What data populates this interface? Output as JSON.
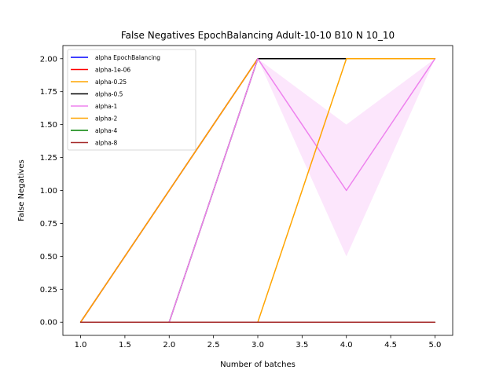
{
  "chart_data": {
    "type": "line",
    "title": "False Negatives EpochBalancing Adult-10-10 B10 N 10_10",
    "xlabel": "Number of batches",
    "ylabel": "False Negatives",
    "xlim": [
      0.8,
      5.2
    ],
    "ylim": [
      -0.1,
      2.1
    ],
    "xticks": [
      1.0,
      1.5,
      2.0,
      2.5,
      3.0,
      3.5,
      4.0,
      4.5,
      5.0
    ],
    "xtick_labels": [
      "1.0",
      "1.5",
      "2.0",
      "2.5",
      "3.0",
      "3.5",
      "4.0",
      "4.5",
      "5.0"
    ],
    "yticks": [
      0.0,
      0.25,
      0.5,
      0.75,
      1.0,
      1.25,
      1.5,
      1.75,
      2.0
    ],
    "ytick_labels": [
      "0.00",
      "0.25",
      "0.50",
      "0.75",
      "1.00",
      "1.25",
      "1.50",
      "1.75",
      "2.00"
    ],
    "grid": false,
    "legend_position": "top-left",
    "x": [
      1,
      2,
      3,
      4,
      5
    ],
    "series": [
      {
        "name": "alpha EpochBalancing",
        "color": "#0000ff",
        "values": [
          0,
          1,
          2,
          2,
          2
        ]
      },
      {
        "name": "alpha-1e-06",
        "color": "#ff0000",
        "values": [
          0,
          1,
          2,
          2,
          2
        ]
      },
      {
        "name": "alpha-0.25",
        "color": "#ffa500",
        "values": [
          0,
          1,
          2,
          2,
          2
        ]
      },
      {
        "name": "alpha-0.5",
        "color": "#000000",
        "values": [
          0,
          0,
          2,
          2,
          2
        ]
      },
      {
        "name": "alpha-1",
        "color": "#ee82ee",
        "values": [
          0,
          0,
          2,
          1,
          2
        ],
        "band_lower": [
          0,
          0,
          2,
          0.5,
          2
        ],
        "band_upper": [
          0,
          0,
          2,
          1.5,
          2
        ]
      },
      {
        "name": "alpha-2",
        "color": "#ffa500",
        "values": [
          0,
          0,
          0,
          2,
          2
        ]
      },
      {
        "name": "alpha-4",
        "color": "#008000",
        "values": [
          0,
          0,
          0,
          0,
          0
        ]
      },
      {
        "name": "alpha-8",
        "color": "#a52a2a",
        "values": [
          0,
          0,
          0,
          0,
          0
        ]
      }
    ]
  }
}
